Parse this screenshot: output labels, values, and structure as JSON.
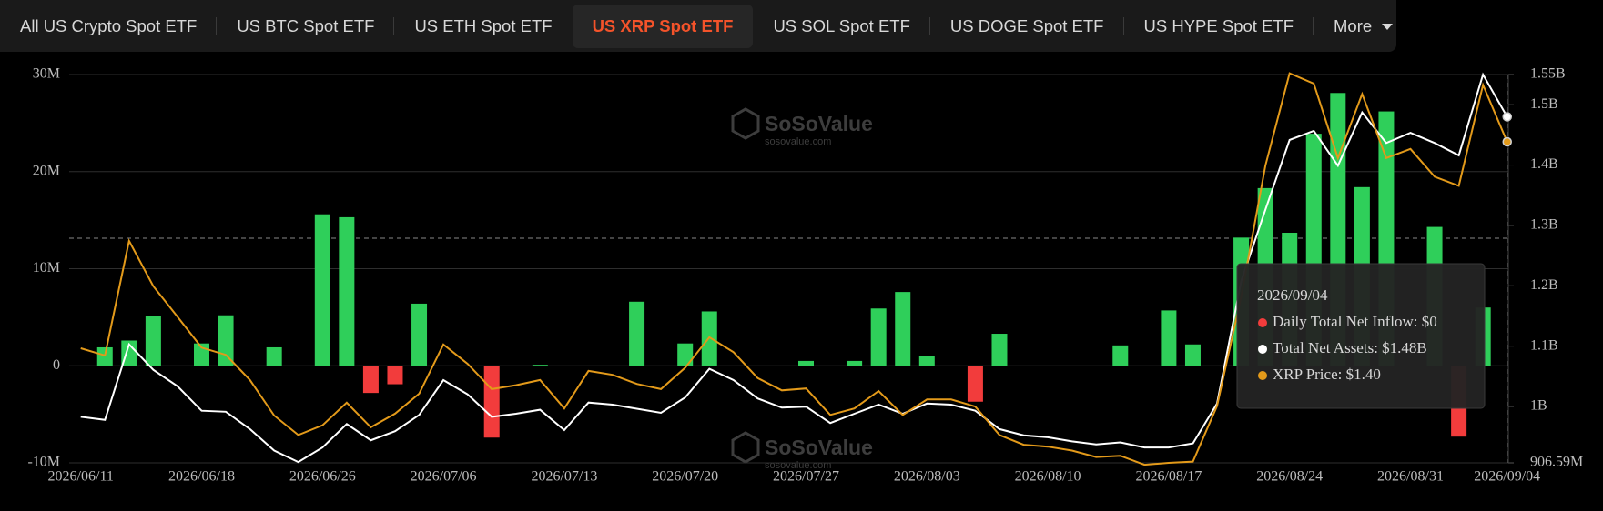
{
  "tabs": [
    "All US Crypto Spot ETF",
    "US BTC Spot ETF",
    "US ETH Spot ETF",
    "US XRP Spot ETF",
    "US SOL Spot ETF",
    "US DOGE Spot ETF",
    "US HYPE Spot ETF",
    "More"
  ],
  "active_tab": 3,
  "watermark": {
    "brand": "SoSoValue",
    "url": "sosovalue.com"
  },
  "tooltip": {
    "date": "2026/09/04",
    "rows": [
      "Daily Total Net Inflow: $0",
      "Total Net Assets: $1.48B",
      "XRP Price: $1.40"
    ],
    "dot_colors": [
      "#f23c3c",
      "#ffffff",
      "#e39a1a"
    ]
  },
  "chart_data": {
    "type": "combo",
    "categories": [
      "2026/06/11",
      null,
      null,
      null,
      null,
      "2026/06/18",
      null,
      null,
      null,
      null,
      "2026/06/26",
      null,
      null,
      null,
      null,
      "2026/07/06",
      null,
      null,
      null,
      null,
      "2026/07/13",
      null,
      null,
      null,
      null,
      "2026/07/20",
      null,
      null,
      null,
      null,
      "2026/07/27",
      null,
      null,
      null,
      null,
      "2026/08/03",
      null,
      null,
      null,
      null,
      "2026/08/10",
      null,
      null,
      null,
      null,
      "2026/08/17",
      null,
      null,
      null,
      null,
      "2026/08/24",
      null,
      null,
      null,
      null,
      "2026/08/31",
      null,
      null,
      null,
      "2026/09/04"
    ],
    "series": [
      {
        "name": "Daily Total Net Inflow",
        "type": "bar",
        "color": "#2fcf5a",
        "negative_color": "#f23c3c",
        "values": [
          0,
          1900000,
          2600000,
          5100000,
          0,
          2300000,
          5200000,
          0,
          1900000,
          0,
          15600000,
          15300000,
          -2800000,
          -1900000,
          6400000,
          0,
          0,
          -7400000,
          0,
          100000,
          0,
          0,
          0,
          6600000,
          0,
          2300000,
          5600000,
          0,
          0,
          0,
          500000,
          0,
          500000,
          5900000,
          7600000,
          1000000,
          0,
          -3700000,
          3300000,
          0,
          0,
          0,
          0,
          2100000,
          0,
          5700000,
          2200000,
          0,
          13200000,
          18300000,
          13700000,
          23900000,
          28100000,
          18400000,
          26200000,
          0,
          14300000,
          -7300000,
          6000000,
          0
        ]
      },
      {
        "name": "Total Net Assets",
        "type": "line",
        "axis": "y2",
        "color": "#ffffff",
        "values": [
          982800000,
          977700000,
          1103000000,
          1060700000,
          1033600000,
          993000000,
          991200000,
          962500000,
          926900000,
          908000000,
          932000000,
          971000000,
          944000000,
          959000000,
          986000000,
          1043700000,
          1020000000,
          982800000,
          988000000,
          994600000,
          960800000,
          1006500000,
          1003000000,
          996300000,
          989500000,
          1015000000,
          1062400000,
          1043700000,
          1013200000,
          998000000,
          999700000,
          972600000,
          988000000,
          1003000000,
          988000000,
          1004800000,
          1003000000,
          993000000,
          962500000,
          952300000,
          948900000,
          942100000,
          937000000,
          940500000,
          932000000,
          932000000,
          938800000,
          1004800000,
          1208000000,
          1326000000,
          1441600000,
          1456800000,
          1399000000,
          1487300000,
          1436500000,
          1453400000,
          1436500000,
          1416000000,
          1550000000,
          1480000000
        ]
      },
      {
        "name": "XRP Price",
        "type": "line",
        "axis": "y3",
        "color": "#e39a1a",
        "values": [
          1.077,
          1.066,
          1.243,
          1.173,
          1.126,
          1.078,
          1.067,
          1.028,
          0.973,
          0.943,
          0.958,
          0.993,
          0.955,
          0.976,
          1.007,
          1.083,
          1.053,
          1.014,
          1.02,
          1.028,
          0.984,
          1.042,
          1.036,
          1.022,
          1.014,
          1.047,
          1.094,
          1.071,
          1.031,
          1.012,
          1.015,
          0.974,
          0.984,
          1.011,
          0.974,
          0.998,
          0.998,
          0.987,
          0.943,
          0.928,
          0.925,
          0.919,
          0.909,
          0.911,
          0.897,
          0.9,
          0.902,
          0.988,
          1.157,
          1.359,
          1.502,
          1.486,
          1.371,
          1.47,
          1.371,
          1.385,
          1.342,
          1.328,
          1.484,
          1.396
        ]
      }
    ],
    "ylim": [
      -10000000,
      30000000
    ],
    "yticks": [
      {
        "value": -10000000,
        "label": "-10M"
      },
      0,
      {
        "value": 10000000,
        "label": "10M"
      },
      {
        "value": 20000000,
        "label": "20M"
      },
      {
        "value": 30000000,
        "label": "30M"
      }
    ],
    "y2lim": [
      906590000,
      1550000000
    ],
    "y2ticks": [
      {
        "value": 906590000,
        "label": "906.59M"
      },
      {
        "value": 1000000000,
        "label": "1B"
      },
      {
        "value": 1100000000,
        "label": "1.1B"
      },
      {
        "value": 1200000000,
        "label": "1.2B"
      },
      {
        "value": 1300000000,
        "label": "1.3B"
      },
      {
        "value": 1400000000,
        "label": "1.4B"
      },
      {
        "value": 1500000000,
        "label": "1.5B"
      },
      {
        "value": 1550000000,
        "label": "1.55B"
      }
    ],
    "y3lim": [
      0.9,
      1.5
    ],
    "grid": true
  }
}
